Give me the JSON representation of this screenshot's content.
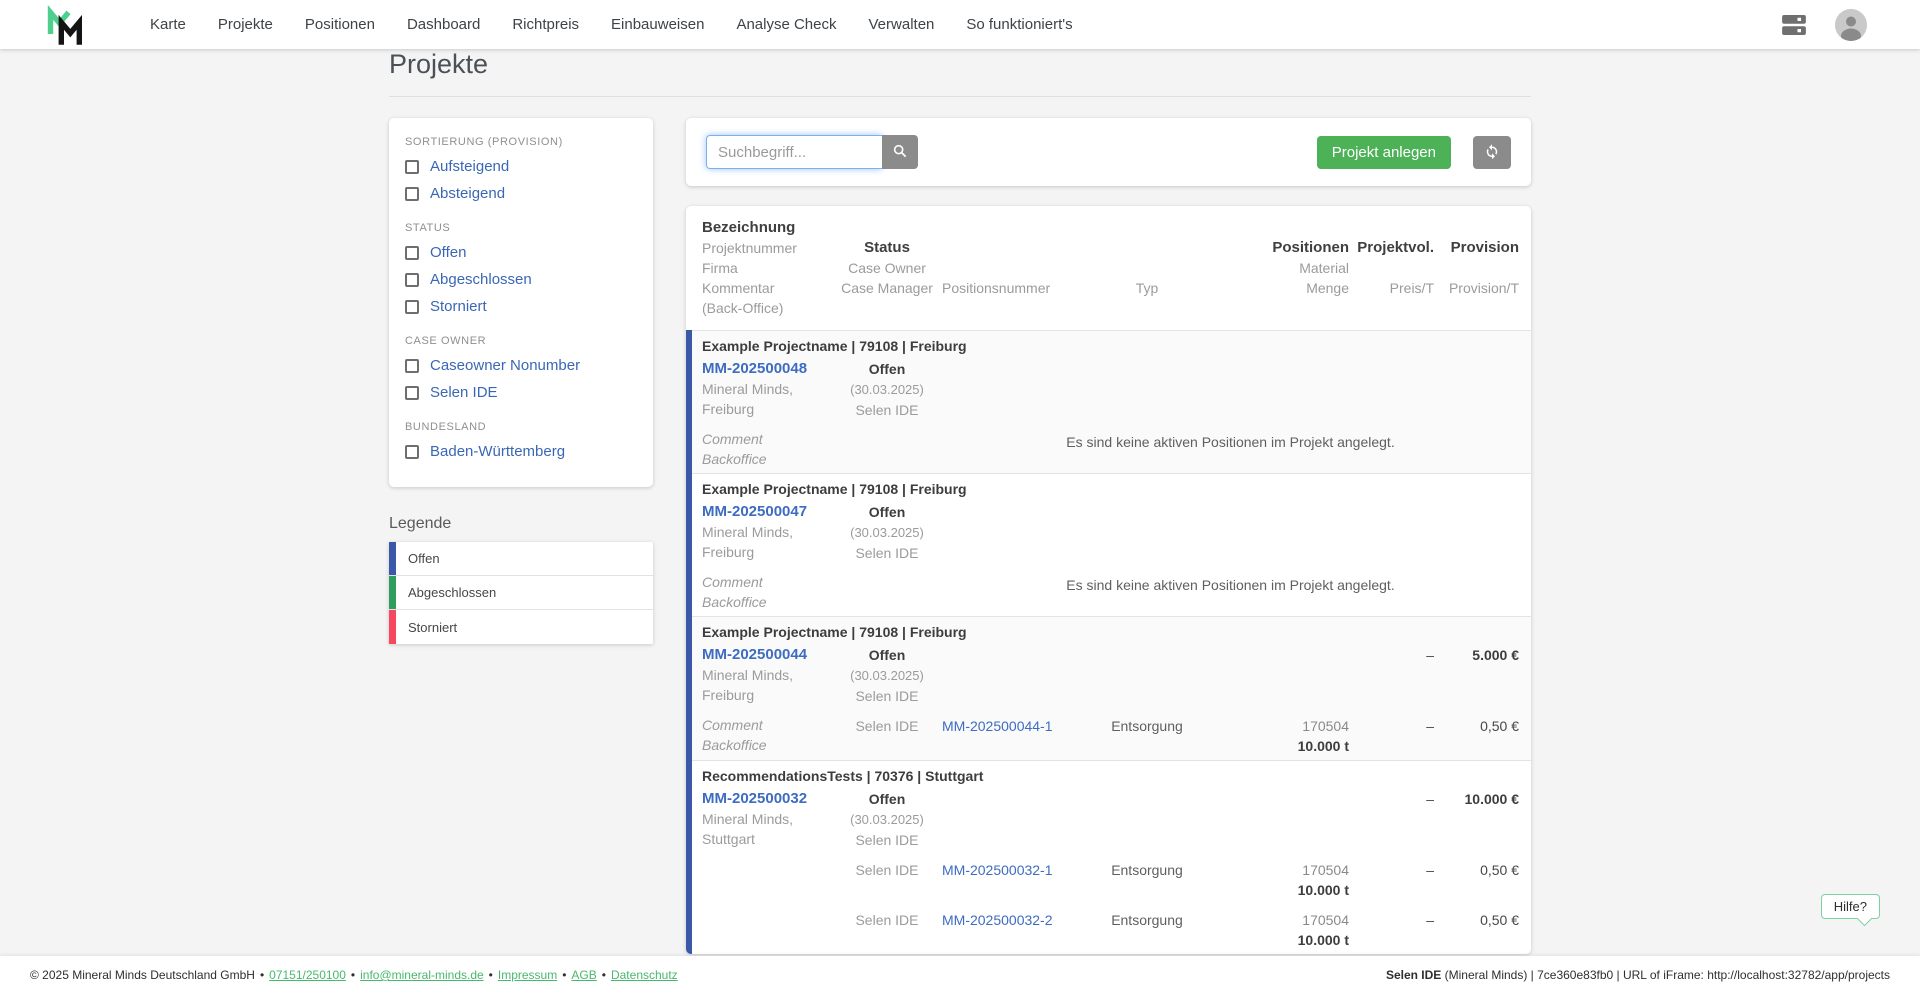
{
  "colors": {
    "status_open": "#3A57A8",
    "status_done": "#2F9E5C",
    "status_cancelled": "#F7465F",
    "accent_green": "#4DB158",
    "link_blue": "#3D6CC0",
    "footer_link_green": "#49B86E"
  },
  "nav": {
    "items": [
      "Karte",
      "Projekte",
      "Positionen",
      "Dashboard",
      "Richtpreis",
      "Einbauweisen",
      "Analyse Check",
      "Verwalten",
      "So funktioniert's"
    ],
    "icons": [
      "mineral-minds-logo",
      "dns-icon",
      "avatar"
    ]
  },
  "page": {
    "title": "Projekte"
  },
  "filters": {
    "sections": [
      {
        "label": "SORTIERUNG (PROVISION)",
        "options": [
          "Aufsteigend",
          "Absteigend"
        ]
      },
      {
        "label": "STATUS",
        "options": [
          "Offen",
          "Abgeschlossen",
          "Storniert"
        ]
      },
      {
        "label": "CASE OWNER",
        "options": [
          "Caseowner Nonumber",
          "Selen IDE"
        ]
      },
      {
        "label": "BUNDESLAND",
        "options": [
          "Baden-Württemberg"
        ]
      }
    ]
  },
  "legend": {
    "title": "Legende",
    "items": [
      {
        "label": "Offen",
        "color": "#3A57A8"
      },
      {
        "label": "Abgeschlossen",
        "color": "#2F9E5C"
      },
      {
        "label": "Storniert",
        "color": "#F7465F"
      }
    ]
  },
  "toolbar": {
    "search_placeholder": "Suchbegriff...",
    "create_button": "Projekt anlegen"
  },
  "table": {
    "header": {
      "bezeichnung": "Bezeichnung",
      "projektnummer": "Projektnummer",
      "firma": "Firma",
      "kommentar": "Kommentar",
      "back_office": "(Back-Office)",
      "status": "Status",
      "case_owner": "Case Owner",
      "case_manager": "Case Manager",
      "positionsnummer": "Positionsnummer",
      "typ": "Typ",
      "positionen": "Positionen",
      "material": "Material",
      "menge": "Menge",
      "projektvol": "Projektvol.",
      "preis_t": "Preis/T",
      "provision": "Provision",
      "provision_t": "Provision/T"
    },
    "rows": [
      {
        "title": "Example Projectname | 79108 | Freiburg",
        "number": "MM-202500048",
        "company": "Mineral Minds,",
        "city": "Freiburg",
        "status": "Offen",
        "status_date": "(30.03.2025)",
        "status_color": "#3A57A8",
        "case_owner": "Selen IDE",
        "comment": "Comment",
        "backoffice": "Backoffice",
        "projektvol": "",
        "provision": "",
        "message": "Es sind keine aktiven Positionen im Projekt angelegt.",
        "positions": []
      },
      {
        "title": "Example Projectname | 79108 | Freiburg",
        "number": "MM-202500047",
        "company": "Mineral Minds,",
        "city": "Freiburg",
        "status": "Offen",
        "status_date": "(30.03.2025)",
        "status_color": "#3A57A8",
        "case_owner": "Selen IDE",
        "comment": "Comment",
        "backoffice": "Backoffice",
        "projektvol": "",
        "provision": "",
        "message": "Es sind keine aktiven Positionen im Projekt angelegt.",
        "positions": []
      },
      {
        "title": "Example Projectname | 79108 | Freiburg",
        "number": "MM-202500044",
        "company": "Mineral Minds,",
        "city": "Freiburg",
        "status": "Offen",
        "status_date": "(30.03.2025)",
        "status_color": "#3A57A8",
        "case_owner": "Selen IDE",
        "comment": "Comment",
        "backoffice": "Backoffice",
        "projektvol": "–",
        "provision": "5.000 €",
        "message": "",
        "positions": [
          {
            "case_owner": "Selen IDE",
            "number": "MM-202500044-1",
            "typ": "Entsorgung",
            "material": "170504",
            "menge": "10.000 t",
            "preis": "–",
            "provision": "0,50 €"
          }
        ]
      },
      {
        "title": "RecommendationsTests | 70376 | Stuttgart",
        "number": "MM-202500032",
        "company": "Mineral Minds,",
        "city": "Stuttgart",
        "status": "Offen",
        "status_date": "(30.03.2025)",
        "status_color": "#3A57A8",
        "case_owner": "Selen IDE",
        "comment": "",
        "backoffice": "",
        "projektvol": "–",
        "provision": "10.000 €",
        "message": "",
        "positions": [
          {
            "case_owner": "Selen IDE",
            "number": "MM-202500032-1",
            "typ": "Entsorgung",
            "material": "170504",
            "menge": "10.000 t",
            "preis": "–",
            "provision": "0,50 €"
          },
          {
            "case_owner": "Selen IDE",
            "number": "MM-202500032-2",
            "typ": "Entsorgung",
            "material": "170504",
            "menge": "10.000 t",
            "preis": "–",
            "provision": "0,50 €"
          }
        ]
      }
    ]
  },
  "help": {
    "label": "Hilfe?"
  },
  "footer": {
    "copyright": "© 2025 Mineral Minds Deutschland GmbH",
    "links": [
      "07151/250100",
      "info@mineral-minds.de",
      "Impressum",
      "AGB",
      "Datenschutz"
    ],
    "session_user": "Selen IDE",
    "session_info": " (Mineral Minds) | 7ce360e83fb0 | URL of iFrame: http://localhost:32782/app/projects"
  }
}
